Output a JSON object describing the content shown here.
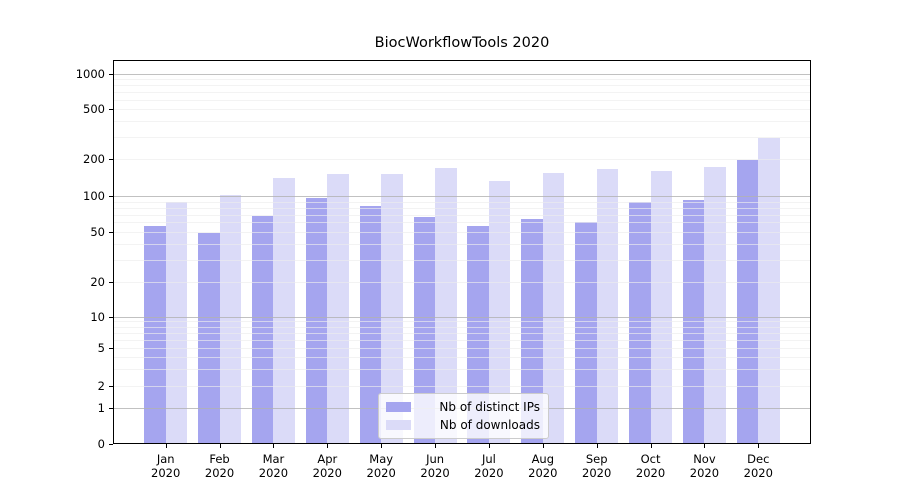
{
  "chart_data": {
    "type": "bar",
    "title": "BiocWorkflowTools 2020",
    "categories": [
      "Jan",
      "Feb",
      "Mar",
      "Apr",
      "May",
      "Jun",
      "Jul",
      "Aug",
      "Sep",
      "Oct",
      "Nov",
      "Dec"
    ],
    "x_sub_label": "2020",
    "series": [
      {
        "name": "Nb of distinct IPs",
        "color": "#a5a5ef",
        "values": [
          56,
          49,
          68,
          96,
          83,
          67,
          56,
          64,
          61,
          90,
          93,
          197
        ]
      },
      {
        "name": "Nb of downloads",
        "color": "#dbdbf8",
        "values": [
          90,
          103,
          141,
          151,
          152,
          168,
          132,
          154,
          166,
          160,
          171,
          295
        ]
      }
    ],
    "y_axis": {
      "scale": "symlog",
      "tick_labels": [
        "0",
        "1",
        "2",
        "5",
        "10",
        "20",
        "50",
        "100",
        "200",
        "500",
        "1000"
      ],
      "tick_values": [
        0,
        1,
        2,
        5,
        10,
        20,
        50,
        100,
        200,
        500,
        1000
      ],
      "major_gridlines": [
        1,
        10,
        100,
        1000
      ],
      "minor_gridlines": [
        2,
        3,
        4,
        5,
        6,
        7,
        8,
        9,
        20,
        30,
        40,
        50,
        60,
        70,
        80,
        90,
        200,
        300,
        400,
        500,
        600,
        700,
        800,
        900
      ],
      "range": [
        0,
        1300
      ]
    },
    "legend": {
      "position": "lower center",
      "entries": [
        "Nb of distinct IPs",
        "Nb of downloads"
      ]
    },
    "grid": "on"
  }
}
